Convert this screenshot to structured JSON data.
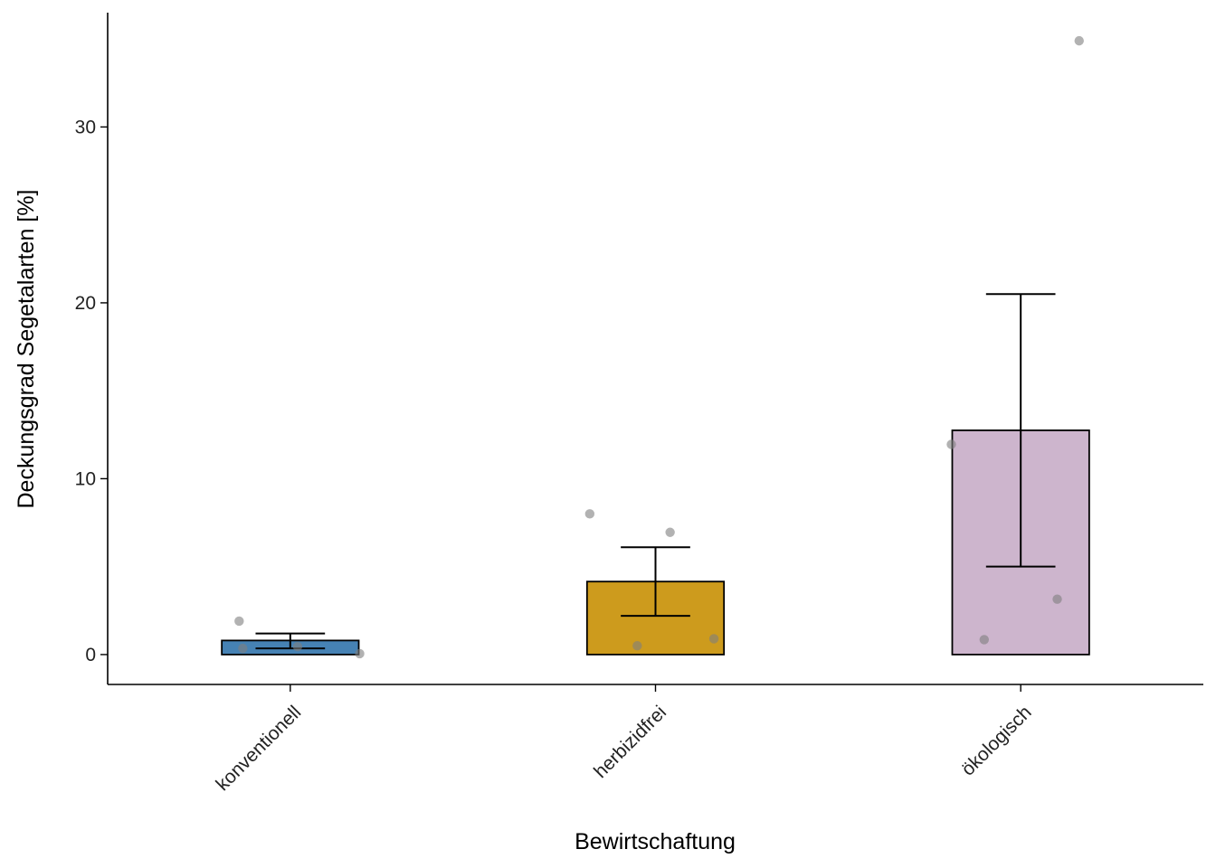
{
  "chart_data": {
    "type": "bar",
    "xlabel": "Bewirtschaftung",
    "ylabel": "Deckungsgrad Segetalarten [%]",
    "ylim": [
      -1.7,
      36.5
    ],
    "yticks": [
      0,
      10,
      20,
      30
    ],
    "categories": [
      "konventionell",
      "herbizidfrei",
      "ökologisch"
    ],
    "values": [
      0.8,
      4.15,
      12.75
    ],
    "error_lower": [
      0.35,
      2.2,
      5.0
    ],
    "error_upper": [
      1.2,
      6.1,
      20.5
    ],
    "colors": [
      "#4682b4",
      "#cd9b1d",
      "#cdb5cd"
    ],
    "points": [
      [
        {
          "x_offset": -0.14,
          "y": 1.9
        },
        {
          "x_offset": -0.13,
          "y": 0.35
        },
        {
          "x_offset": 0.02,
          "y": 0.45
        },
        {
          "x_offset": 0.19,
          "y": 0.05
        }
      ],
      [
        {
          "x_offset": -0.18,
          "y": 8.0
        },
        {
          "x_offset": -0.05,
          "y": 0.5
        },
        {
          "x_offset": 0.04,
          "y": 6.95
        },
        {
          "x_offset": 0.16,
          "y": 0.9
        }
      ],
      [
        {
          "x_offset": -0.19,
          "y": 11.95
        },
        {
          "x_offset": -0.1,
          "y": 0.85
        },
        {
          "x_offset": 0.1,
          "y": 3.15
        },
        {
          "x_offset": 0.16,
          "y": 34.9
        }
      ]
    ],
    "grid": false,
    "legend": "none",
    "point_color": "#7f7f7f"
  }
}
